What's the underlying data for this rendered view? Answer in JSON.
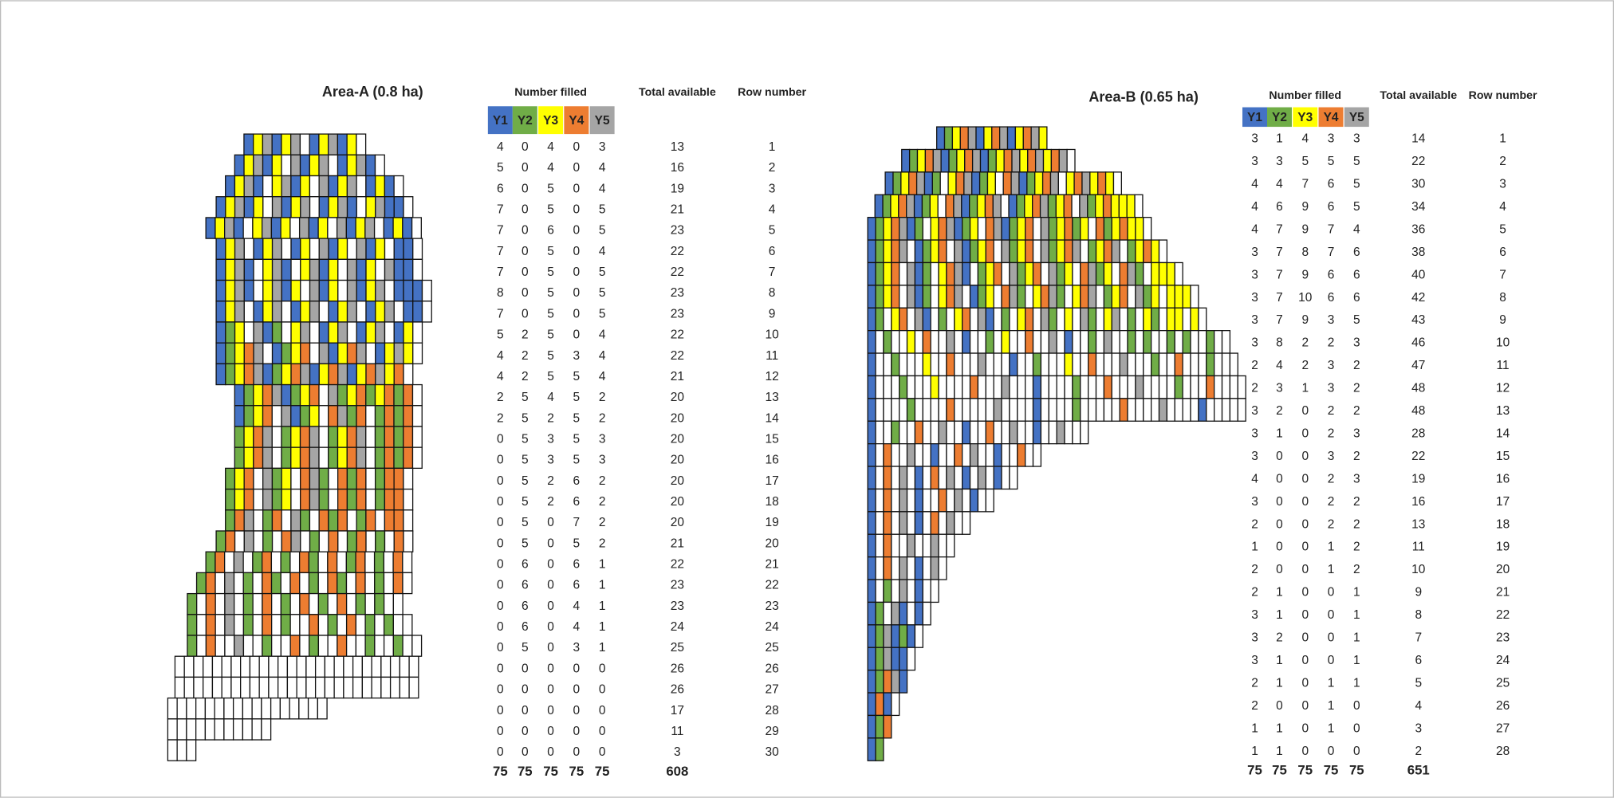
{
  "colors": [
    "#4472c4",
    "#70ad47",
    "#ffff00",
    "#ed7d31",
    "#a5a5a5"
  ],
  "areas": [
    {
      "title": "Area-A (0.8 ha)",
      "header": {
        "filled": "Number filled",
        "total": "Total available",
        "row": "Row number",
        "years": [
          "Y1",
          "Y2",
          "Y3",
          "Y4",
          "Y5"
        ]
      },
      "rows": [
        [
          4,
          0,
          4,
          0,
          3,
          13,
          1
        ],
        [
          5,
          0,
          4,
          0,
          4,
          16,
          2
        ],
        [
          6,
          0,
          5,
          0,
          4,
          19,
          3
        ],
        [
          7,
          0,
          5,
          0,
          5,
          21,
          4
        ],
        [
          7,
          0,
          6,
          0,
          5,
          23,
          5
        ],
        [
          7,
          0,
          5,
          0,
          4,
          22,
          6
        ],
        [
          7,
          0,
          5,
          0,
          5,
          22,
          7
        ],
        [
          8,
          0,
          5,
          0,
          5,
          23,
          8
        ],
        [
          7,
          0,
          5,
          0,
          5,
          23,
          9
        ],
        [
          5,
          2,
          5,
          0,
          4,
          22,
          10
        ],
        [
          4,
          2,
          5,
          3,
          4,
          22,
          11
        ],
        [
          4,
          2,
          5,
          5,
          4,
          21,
          12
        ],
        [
          2,
          5,
          4,
          5,
          2,
          20,
          13
        ],
        [
          2,
          5,
          2,
          5,
          2,
          20,
          14
        ],
        [
          0,
          5,
          3,
          5,
          3,
          20,
          15
        ],
        [
          0,
          5,
          3,
          5,
          3,
          20,
          16
        ],
        [
          0,
          5,
          2,
          6,
          2,
          20,
          17
        ],
        [
          0,
          5,
          2,
          6,
          2,
          20,
          18
        ],
        [
          0,
          5,
          0,
          7,
          2,
          20,
          19
        ],
        [
          0,
          5,
          0,
          5,
          2,
          21,
          20
        ],
        [
          0,
          6,
          0,
          6,
          1,
          22,
          21
        ],
        [
          0,
          6,
          0,
          6,
          1,
          23,
          22
        ],
        [
          0,
          6,
          0,
          4,
          1,
          23,
          23
        ],
        [
          0,
          6,
          0,
          4,
          1,
          24,
          24
        ],
        [
          0,
          5,
          0,
          3,
          1,
          25,
          25
        ],
        [
          0,
          0,
          0,
          0,
          0,
          26,
          26
        ],
        [
          0,
          0,
          0,
          0,
          0,
          26,
          27
        ],
        [
          0,
          0,
          0,
          0,
          0,
          17,
          28
        ],
        [
          0,
          0,
          0,
          0,
          0,
          11,
          29
        ],
        [
          0,
          0,
          0,
          0,
          0,
          3,
          30
        ]
      ],
      "totals": [
        75,
        75,
        75,
        75,
        75,
        608
      ]
    },
    {
      "title": "Area-B (0.65 ha)",
      "header": {
        "filled": "Number filled",
        "total": "Total available",
        "row": "Row number",
        "years": [
          "Y1",
          "Y2",
          "Y3",
          "Y4",
          "Y5"
        ]
      },
      "rows": [
        [
          3,
          1,
          4,
          3,
          3,
          14,
          1
        ],
        [
          3,
          3,
          5,
          5,
          5,
          22,
          2
        ],
        [
          4,
          4,
          7,
          6,
          5,
          30,
          3
        ],
        [
          4,
          6,
          9,
          6,
          5,
          34,
          4
        ],
        [
          4,
          7,
          9,
          7,
          4,
          36,
          5
        ],
        [
          3,
          7,
          8,
          7,
          6,
          38,
          6
        ],
        [
          3,
          7,
          9,
          6,
          6,
          40,
          7
        ],
        [
          3,
          7,
          10,
          6,
          6,
          42,
          8
        ],
        [
          3,
          7,
          9,
          3,
          5,
          43,
          9
        ],
        [
          3,
          8,
          2,
          2,
          3,
          46,
          10
        ],
        [
          2,
          4,
          2,
          3,
          2,
          47,
          11
        ],
        [
          2,
          3,
          1,
          3,
          2,
          48,
          12
        ],
        [
          3,
          2,
          0,
          2,
          2,
          48,
          13
        ],
        [
          3,
          1,
          0,
          2,
          3,
          28,
          14
        ],
        [
          3,
          0,
          0,
          3,
          2,
          22,
          15
        ],
        [
          4,
          0,
          0,
          2,
          3,
          19,
          16
        ],
        [
          3,
          0,
          0,
          2,
          2,
          16,
          17
        ],
        [
          2,
          0,
          0,
          2,
          2,
          13,
          18
        ],
        [
          1,
          0,
          0,
          1,
          2,
          11,
          19
        ],
        [
          2,
          0,
          0,
          1,
          2,
          10,
          20
        ],
        [
          2,
          1,
          0,
          0,
          1,
          9,
          21
        ],
        [
          3,
          1,
          0,
          0,
          1,
          8,
          22
        ],
        [
          3,
          2,
          0,
          0,
          1,
          7,
          23
        ],
        [
          3,
          1,
          0,
          0,
          1,
          6,
          24
        ],
        [
          2,
          1,
          0,
          1,
          1,
          5,
          25
        ],
        [
          2,
          0,
          0,
          1,
          0,
          4,
          26
        ],
        [
          1,
          1,
          0,
          1,
          0,
          3,
          27
        ],
        [
          1,
          1,
          0,
          0,
          0,
          2,
          28
        ]
      ],
      "totals": [
        75,
        75,
        75,
        75,
        75,
        651
      ]
    }
  ]
}
